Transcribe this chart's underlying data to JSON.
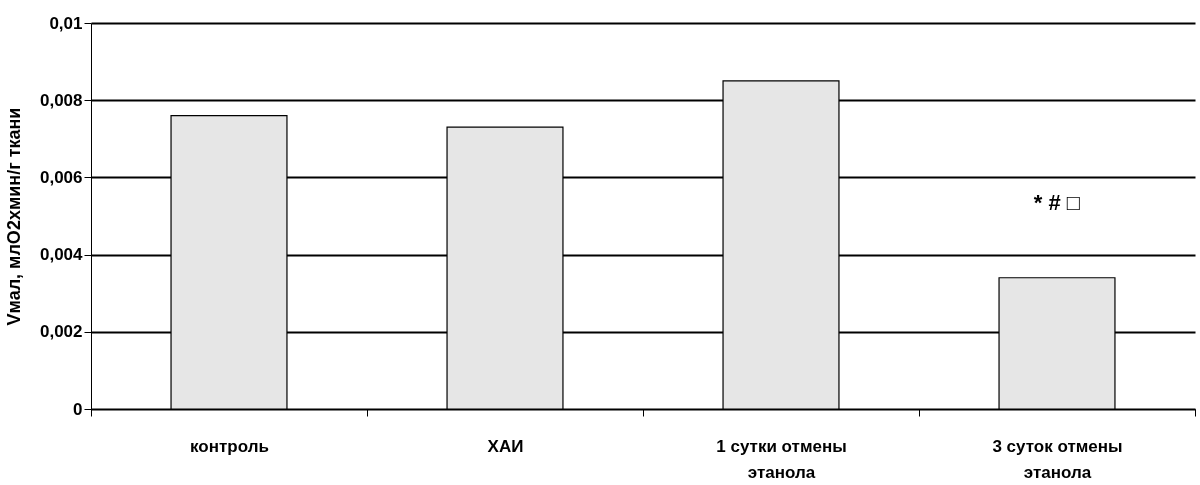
{
  "chart_data": {
    "type": "bar",
    "ylabel": "Vмал, млО2хмин/г ткани",
    "categories": [
      "контроль",
      "ХАИ",
      "1 сутки отмены\nэтанола",
      "3 суток отмены\nэтанола"
    ],
    "values": [
      0.0076,
      0.0073,
      0.0085,
      0.0034
    ],
    "color": "#e6e6e6",
    "ylim": [
      0,
      0.01
    ],
    "yticks": [
      0,
      {
        "value": 0.002,
        "label": "0,002"
      },
      {
        "value": 0.004,
        "label": "0,004"
      },
      {
        "value": 0.006,
        "label": "0,006"
      },
      {
        "value": 0.008,
        "label": "0,008"
      },
      {
        "value": 0.01,
        "label": "0,01"
      }
    ],
    "grid": "y",
    "annotations": [
      "*",
      "#",
      "□"
    ]
  }
}
